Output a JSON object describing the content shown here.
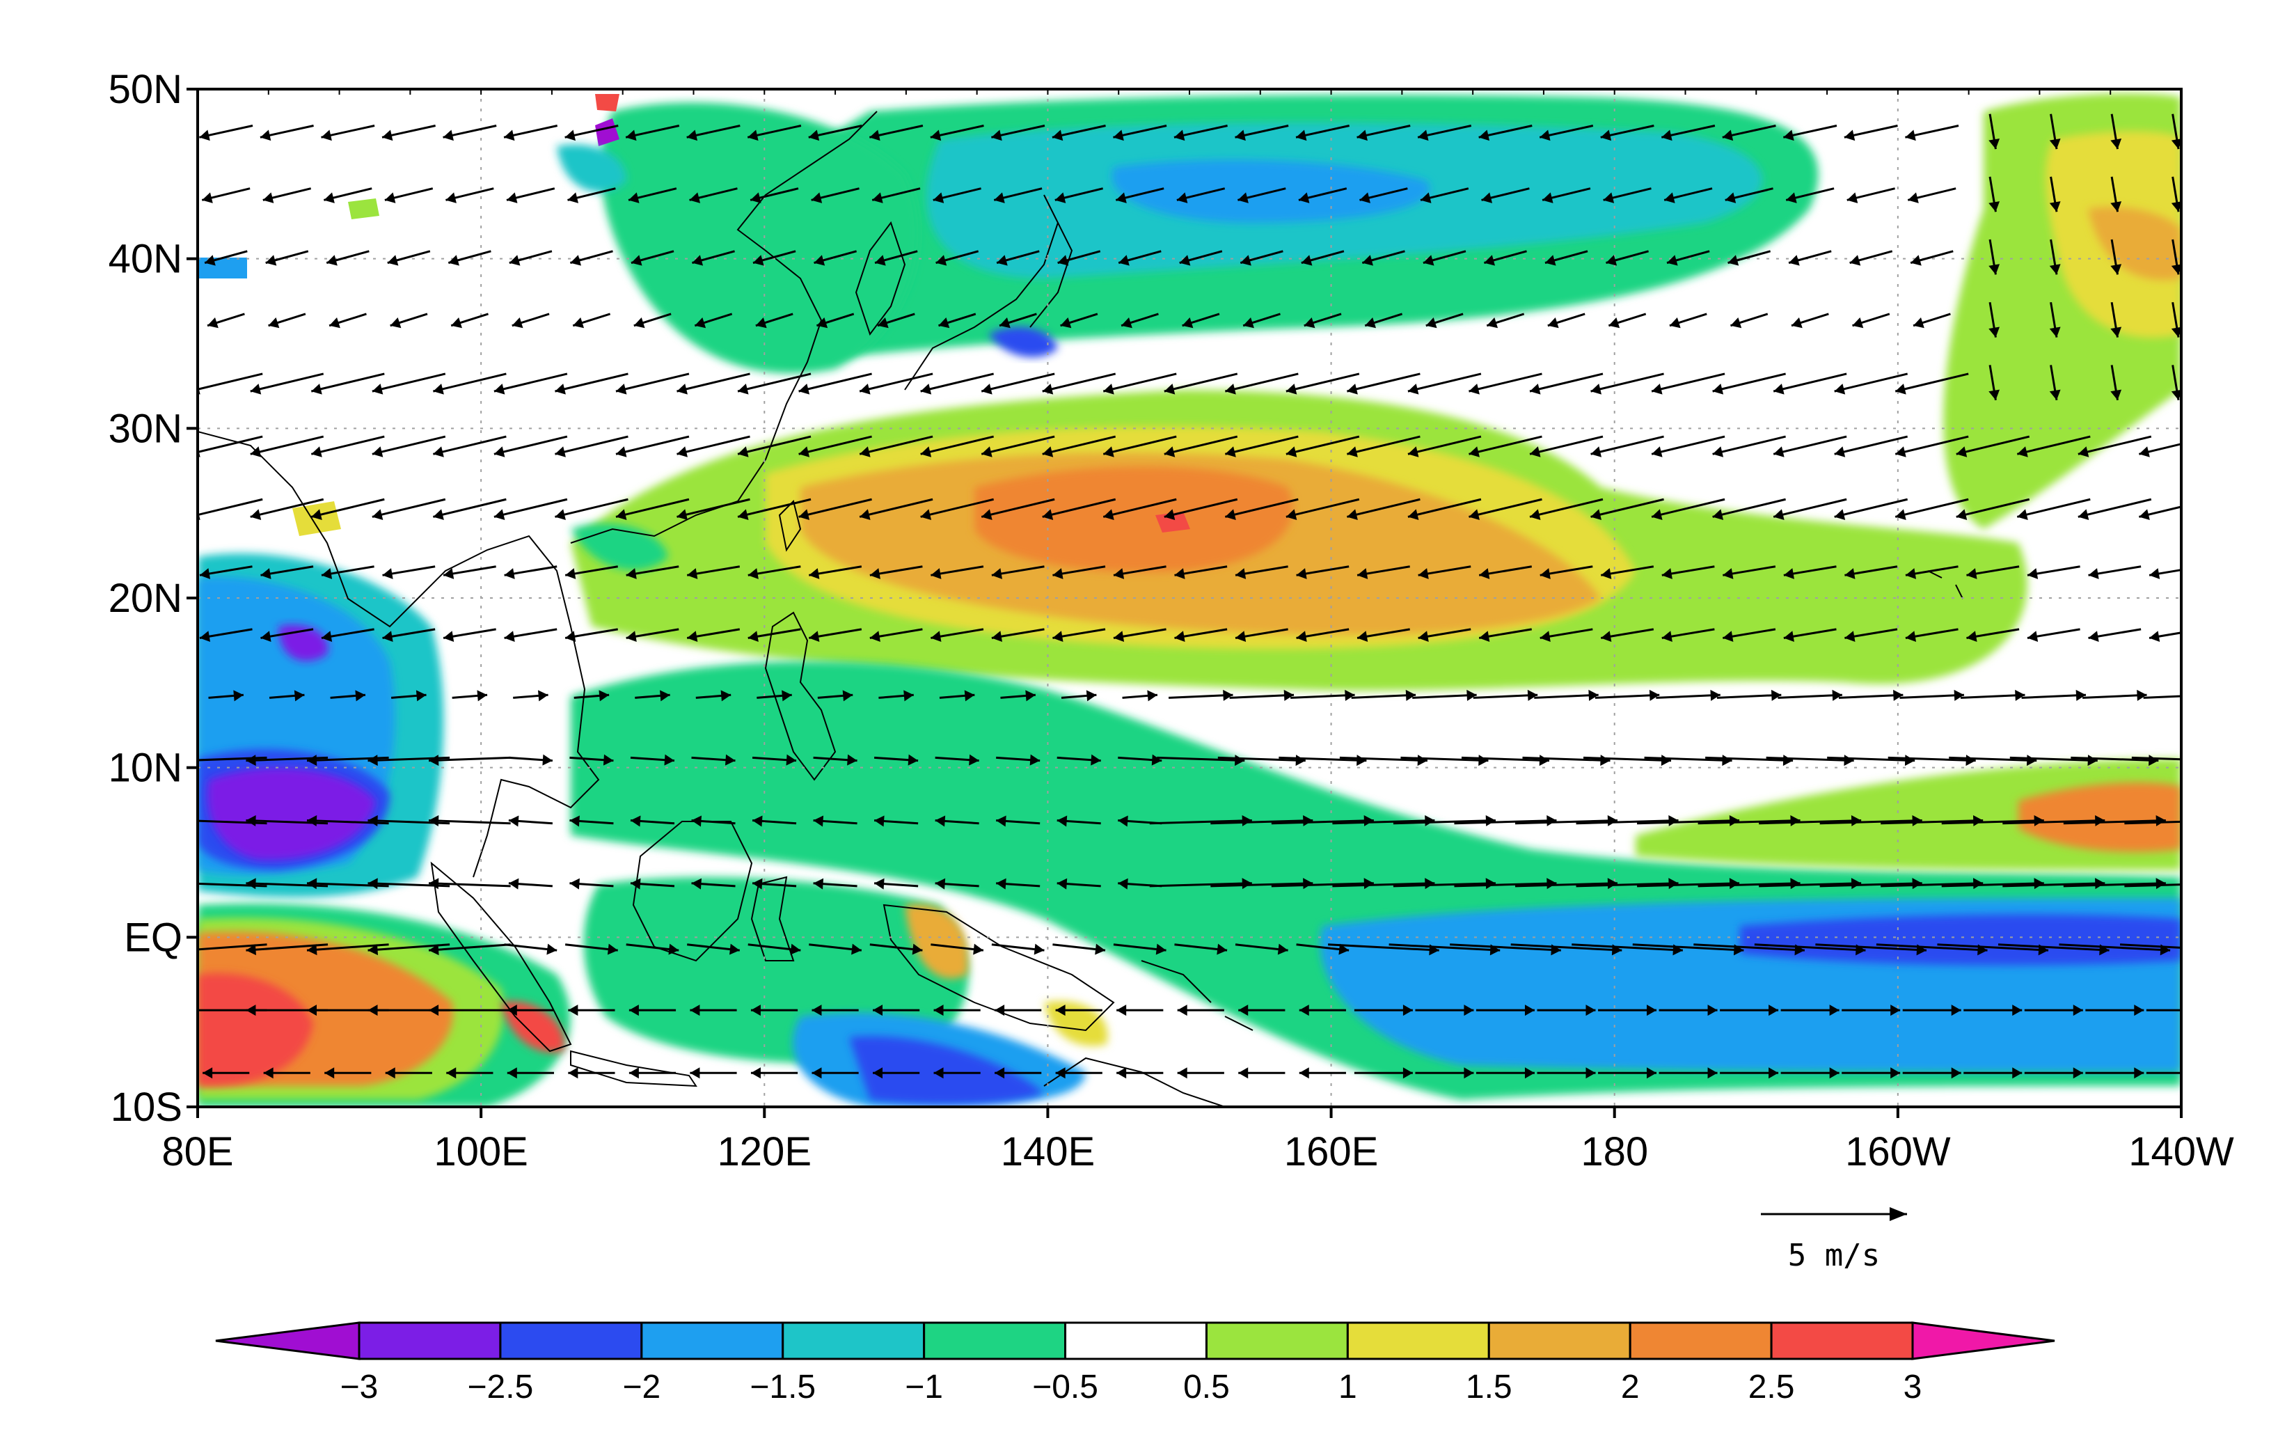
{
  "map": {
    "lat_labels": [
      "50N",
      "40N",
      "30N",
      "20N",
      "10N",
      "EQ",
      "10S"
    ],
    "lon_labels": [
      "80E",
      "100E",
      "120E",
      "140E",
      "160E",
      "180",
      "160W",
      "140W"
    ],
    "lat_values": [
      50,
      40,
      30,
      20,
      10,
      0,
      -10
    ],
    "lon_values": [
      80,
      100,
      120,
      140,
      160,
      180,
      200,
      220
    ],
    "extent": {
      "lon": [
        80,
        220
      ],
      "lat": [
        -10,
        50
      ]
    },
    "grid": "dotted",
    "vector_reference": {
      "label": "5 m/s",
      "magnitude": 5
    },
    "anomaly_regions": [
      {
        "name": "subtropical-north-pacific-positive",
        "level": 2.0,
        "color": "#f29a2e"
      },
      {
        "name": "mid-latitude-north-pacific-negative",
        "level": -1.5,
        "color": "#1ec4c0"
      },
      {
        "name": "equatorial-central-pacific-negative",
        "level": -2.0,
        "color": "#169ef0"
      },
      {
        "name": "bay-of-bengal-negative",
        "level": -3.0,
        "color": "#8a1de0"
      },
      {
        "name": "eastern-indian-ocean-positive",
        "level": 2.5,
        "color": "#f24a42"
      },
      {
        "name": "northeast-pacific-positive",
        "level": 1.5,
        "color": "#e3d530"
      }
    ]
  },
  "colorbar": {
    "levels": [
      "−3",
      "−2.5",
      "−2",
      "−1.5",
      "−1",
      "−0.5",
      "0.5",
      "1",
      "1.5",
      "2",
      "2.5",
      "3"
    ],
    "colors": [
      "#a00ed2",
      "#7c1ee6",
      "#2c4bf0",
      "#1e9ff0",
      "#1ec5c8",
      "#1ed483",
      "#ffffff",
      "#9be43e",
      "#e5dd3a",
      "#e9ac37",
      "#ef8633",
      "#f34a45",
      "#f018a8"
    ],
    "extend": "both"
  }
}
